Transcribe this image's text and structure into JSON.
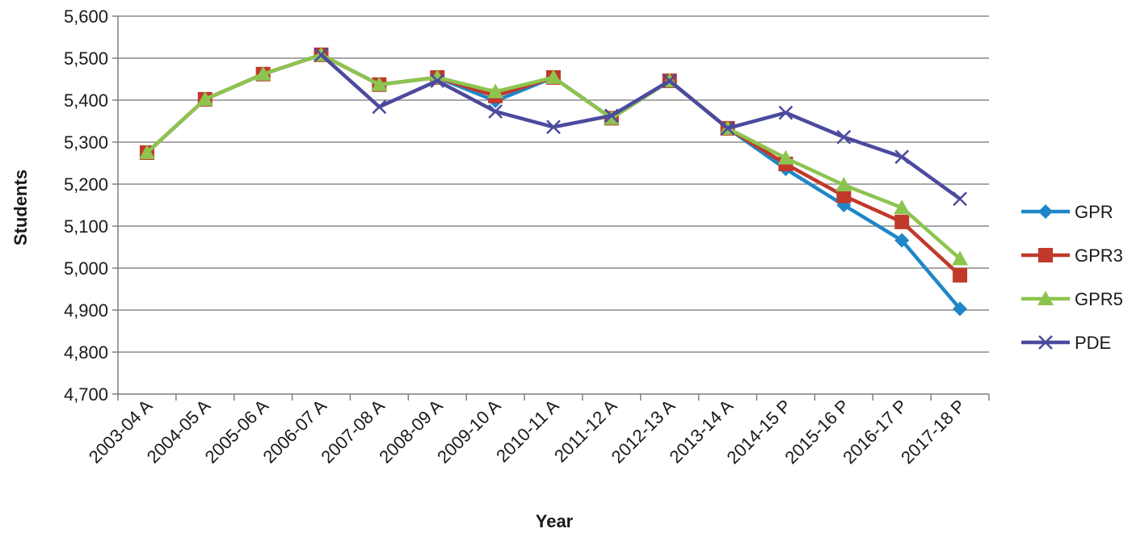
{
  "chart_data": {
    "type": "line",
    "title": "",
    "xlabel": "Year",
    "ylabel": "Students",
    "ylim": [
      4700,
      5600
    ],
    "y_ticks": [
      4700,
      4800,
      4900,
      5000,
      5100,
      5200,
      5300,
      5400,
      5500,
      5600
    ],
    "y_tick_labels": [
      "4,700",
      "4,800",
      "4,900",
      "5,000",
      "5,100",
      "5,200",
      "5,300",
      "5,400",
      "5,500",
      "5,600"
    ],
    "grid": "horizontal",
    "legend_position": "right",
    "categories": [
      "2003-04 A",
      "2004-05 A",
      "2005-06 A",
      "2006-07 A",
      "2007-08 A",
      "2008-09 A",
      "2009-10 A",
      "2010-11 A",
      "2011-12 A",
      "2012-13 A",
      "2013-14 A",
      "2014-15 P",
      "2015-16 P",
      "2016-17 P",
      "2017-18 P"
    ],
    "series": [
      {
        "name": "GPR",
        "color": "#1f87c7",
        "marker": "diamond",
        "values": [
          5275,
          5402,
          5462,
          5508,
          5437,
          5454,
          5398,
          5454,
          5357,
          5446,
          5333,
          5236,
          5150,
          5066,
          4903
        ]
      },
      {
        "name": "GPR3",
        "color": "#c0392b",
        "marker": "square",
        "values": [
          5275,
          5402,
          5462,
          5508,
          5437,
          5454,
          5410,
          5454,
          5357,
          5446,
          5333,
          5248,
          5172,
          5110,
          4983
        ]
      },
      {
        "name": "GPR5",
        "color": "#8dc450",
        "marker": "triangle",
        "values": [
          5275,
          5402,
          5462,
          5508,
          5437,
          5454,
          5420,
          5454,
          5357,
          5446,
          5333,
          5262,
          5198,
          5144,
          5022
        ]
      },
      {
        "name": "PDE",
        "color": "#4b4a9e",
        "marker": "x",
        "values": [
          null,
          null,
          null,
          5508,
          5384,
          5446,
          5373,
          5336,
          5363,
          5446,
          5333,
          5370,
          5312,
          5265,
          5165
        ]
      }
    ]
  }
}
